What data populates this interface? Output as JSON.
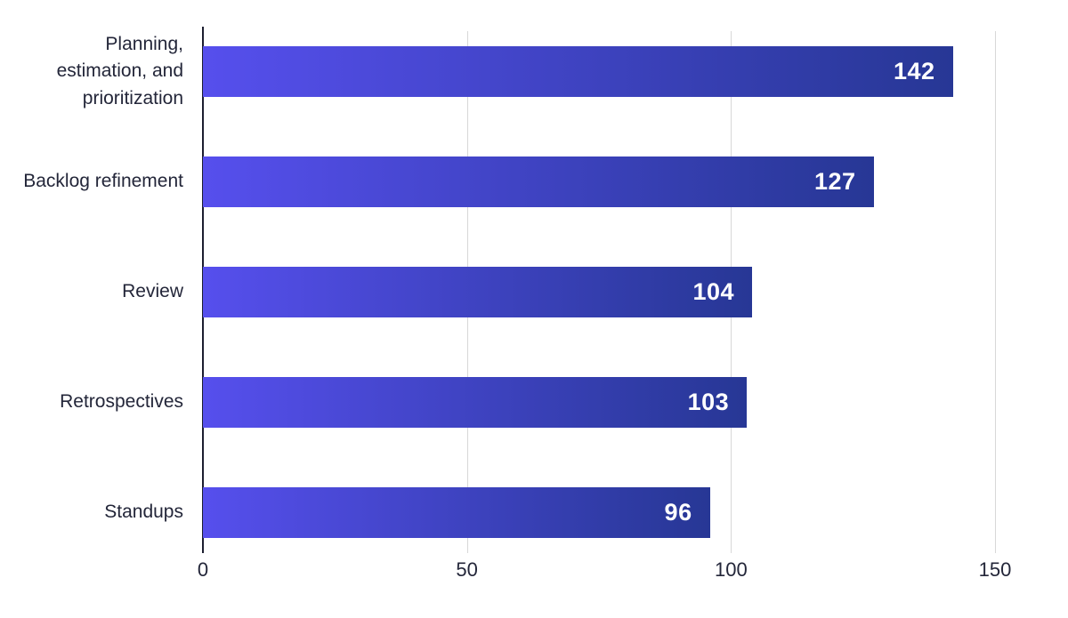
{
  "chart_data": {
    "type": "bar",
    "orientation": "horizontal",
    "title": "",
    "xlabel": "",
    "ylabel": "",
    "categories": [
      "Planning, estimation, and prioritization",
      "Backlog refinement",
      "Review",
      "Retrospectives",
      "Standups"
    ],
    "values": [
      142,
      127,
      104,
      103,
      96
    ],
    "value_labels": [
      "142",
      "127",
      "104",
      "103",
      "96"
    ],
    "xlim": [
      0,
      150
    ],
    "xticks": [
      0,
      50,
      100,
      150
    ],
    "xtick_labels": [
      "0",
      "50",
      "100",
      "150"
    ],
    "grid": true,
    "legend": false,
    "colors": {
      "background": "#ffffff",
      "bar_gradient_start": "#564fed",
      "bar_gradient_end": "#273795",
      "grid_line": "#d8d8d8",
      "axis_line": "#1c1e30",
      "label_text": "#232639",
      "value_text": "#ffffff"
    }
  }
}
